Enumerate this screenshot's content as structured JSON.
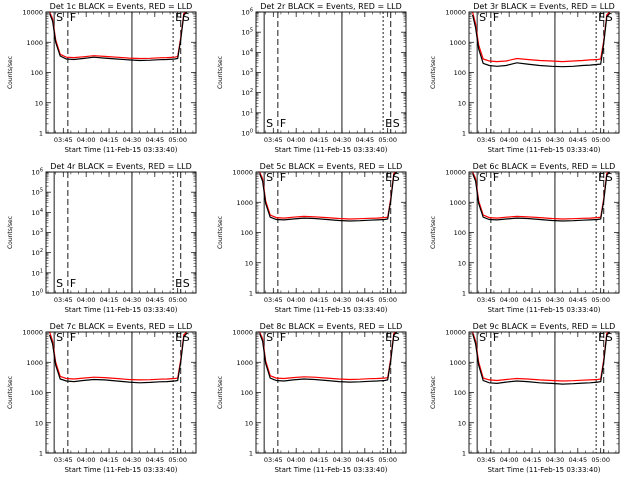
{
  "chart_data": [
    {
      "type": "line",
      "title": "Det 1c BLACK = Events, RED = LLD",
      "xlabel": "Start Time (11-Feb-15 03:33:40)",
      "ylabel": "Counts/sec",
      "xlim": [
        "03:33:40",
        "05:12:00"
      ],
      "x_ticks": [
        "03:45",
        "04:00",
        "04:15",
        "04:30",
        "04:45",
        "05:00"
      ],
      "yscale": "log",
      "ylim": [
        1,
        10000
      ],
      "y_ticks": [
        "1",
        "10",
        "100",
        "1000",
        "10000"
      ],
      "grid": false,
      "x": [
        "03:36",
        "03:38",
        "03:40",
        "03:43",
        "03:47",
        "03:52",
        "03:58",
        "04:05",
        "04:12",
        "04:20",
        "04:28",
        "04:35",
        "04:42",
        "04:48",
        "04:53",
        "04:58",
        "05:00",
        "05:02",
        "05:04",
        "05:06"
      ],
      "series": [
        {
          "name": "Events",
          "color": "#000000",
          "values": [
            9000,
            5000,
            1000,
            350,
            280,
            270,
            290,
            320,
            300,
            280,
            260,
            250,
            255,
            265,
            270,
            280,
            290,
            1200,
            8000,
            10000
          ]
        },
        {
          "name": "LLD",
          "color": "#ff0000",
          "values": [
            10000,
            6000,
            1200,
            400,
            320,
            310,
            330,
            360,
            340,
            320,
            300,
            290,
            295,
            305,
            310,
            320,
            340,
            1400,
            9000,
            10000
          ]
        }
      ],
      "markers": [
        {
          "label": "S",
          "time": "03:39"
        },
        {
          "label": "F",
          "time": "03:48"
        },
        {
          "label": "",
          "time": "04:30"
        },
        {
          "label": "E",
          "time": "04:57"
        },
        {
          "label": "S",
          "time": "05:02"
        }
      ]
    },
    {
      "type": "line",
      "title": "Det 2r BLACK = Events, RED = LLD",
      "xlabel": "Start Time (11-Feb-15 03:33:40)",
      "ylabel": "Counts/sec",
      "xlim": [
        "03:33:40",
        "05:12:00"
      ],
      "x_ticks": [
        "03:45",
        "04:00",
        "04:15",
        "04:30",
        "04:45",
        "05:00"
      ],
      "yscale": "log",
      "ylim": [
        1,
        1000000
      ],
      "y_ticks": [
        "10^0",
        "10^1",
        "10^2",
        "10^3",
        "10^4",
        "10^5",
        "10^6"
      ],
      "grid": false,
      "x": [],
      "series": [],
      "markers": [
        {
          "label": "S",
          "time": "03:39"
        },
        {
          "label": "F",
          "time": "03:48"
        },
        {
          "label": "",
          "time": "04:30"
        },
        {
          "label": "E",
          "time": "04:57"
        },
        {
          "label": "S",
          "time": "05:02"
        }
      ]
    },
    {
      "type": "line",
      "title": "Det 3r BLACK = Events, RED = LLD",
      "xlabel": "Start Time (11-Feb-15 03:33:40)",
      "ylabel": "Counts/sec",
      "xlim": [
        "03:33:40",
        "05:12:00"
      ],
      "x_ticks": [
        "03:45",
        "04:00",
        "04:15",
        "04:30",
        "04:45",
        "05:00"
      ],
      "yscale": "log",
      "ylim": [
        1,
        10000
      ],
      "y_ticks": [
        "1",
        "10",
        "100",
        "1000",
        "10000"
      ],
      "grid": false,
      "x": [
        "03:36",
        "03:38",
        "03:40",
        "03:43",
        "03:47",
        "03:52",
        "03:58",
        "04:05",
        "04:12",
        "04:20",
        "04:28",
        "04:35",
        "04:42",
        "04:48",
        "04:53",
        "04:58",
        "05:00",
        "05:02",
        "05:04",
        "05:06"
      ],
      "series": [
        {
          "name": "Events",
          "color": "#000000",
          "values": [
            8000,
            3000,
            600,
            200,
            170,
            160,
            170,
            210,
            190,
            170,
            160,
            155,
            160,
            170,
            175,
            185,
            190,
            900,
            7000,
            9000
          ]
        },
        {
          "name": "LLD",
          "color": "#ff0000",
          "values": [
            10000,
            4000,
            800,
            280,
            240,
            230,
            240,
            290,
            270,
            250,
            240,
            230,
            240,
            250,
            260,
            270,
            280,
            1100,
            8000,
            10000
          ]
        }
      ],
      "markers": [
        {
          "label": "S",
          "time": "03:39"
        },
        {
          "label": "F",
          "time": "03:48"
        },
        {
          "label": "",
          "time": "04:30"
        },
        {
          "label": "E",
          "time": "04:57"
        },
        {
          "label": "S",
          "time": "05:02"
        }
      ]
    },
    {
      "type": "line",
      "title": "Det 4r BLACK = Events, RED = LLD",
      "xlabel": "Start Time (11-Feb-15 03:33:40)",
      "ylabel": "Counts/sec",
      "xlim": [
        "03:33:40",
        "05:12:00"
      ],
      "x_ticks": [
        "03:45",
        "04:00",
        "04:15",
        "04:30",
        "04:45",
        "05:00"
      ],
      "yscale": "log",
      "ylim": [
        1,
        1000000
      ],
      "y_ticks": [
        "10^0",
        "10^1",
        "10^2",
        "10^3",
        "10^4",
        "10^5",
        "10^6"
      ],
      "grid": false,
      "x": [],
      "series": [],
      "markers": [
        {
          "label": "S",
          "time": "03:39"
        },
        {
          "label": "F",
          "time": "03:48"
        },
        {
          "label": "",
          "time": "04:30"
        },
        {
          "label": "E",
          "time": "04:57"
        },
        {
          "label": "S",
          "time": "05:02"
        }
      ]
    },
    {
      "type": "line",
      "title": "Det 5c BLACK = Events, RED = LLD",
      "xlabel": "Start Time (11-Feb-15 03:33:40)",
      "ylabel": "Counts/sec",
      "xlim": [
        "03:33:40",
        "05:12:00"
      ],
      "x_ticks": [
        "03:45",
        "04:00",
        "04:15",
        "04:30",
        "04:45",
        "05:00"
      ],
      "yscale": "log",
      "ylim": [
        1,
        10000
      ],
      "y_ticks": [
        "1",
        "10",
        "100",
        "1000",
        "10000"
      ],
      "grid": false,
      "x": [
        "03:36",
        "03:38",
        "03:40",
        "03:43",
        "03:47",
        "03:52",
        "03:58",
        "04:05",
        "04:12",
        "04:20",
        "04:28",
        "04:35",
        "04:42",
        "04:48",
        "04:53",
        "04:58",
        "05:00",
        "05:02",
        "05:04",
        "05:06"
      ],
      "series": [
        {
          "name": "Events",
          "color": "#000000",
          "values": [
            9000,
            5000,
            900,
            320,
            270,
            260,
            280,
            300,
            290,
            270,
            250,
            240,
            245,
            255,
            260,
            270,
            280,
            1100,
            8000,
            10000
          ]
        },
        {
          "name": "LLD",
          "color": "#ff0000",
          "values": [
            10000,
            6000,
            1100,
            380,
            310,
            300,
            320,
            340,
            330,
            310,
            290,
            280,
            285,
            295,
            300,
            310,
            320,
            1300,
            9000,
            10000
          ]
        }
      ],
      "markers": [
        {
          "label": "S",
          "time": "03:39"
        },
        {
          "label": "F",
          "time": "03:48"
        },
        {
          "label": "",
          "time": "04:30"
        },
        {
          "label": "E",
          "time": "04:57"
        },
        {
          "label": "S",
          "time": "05:02"
        }
      ]
    },
    {
      "type": "line",
      "title": "Det 6c BLACK = Events, RED = LLD",
      "xlabel": "Start Time (11-Feb-15 03:33:40)",
      "ylabel": "Counts/sec",
      "xlim": [
        "03:33:40",
        "05:12:00"
      ],
      "x_ticks": [
        "03:45",
        "04:00",
        "04:15",
        "04:30",
        "04:45",
        "05:00"
      ],
      "yscale": "log",
      "ylim": [
        1,
        10000
      ],
      "y_ticks": [
        "1",
        "10",
        "100",
        "1000",
        "10000"
      ],
      "grid": false,
      "x": [
        "03:36",
        "03:38",
        "03:40",
        "03:43",
        "03:47",
        "03:52",
        "03:58",
        "04:05",
        "04:12",
        "04:20",
        "04:28",
        "04:35",
        "04:42",
        "04:48",
        "04:53",
        "04:58",
        "05:00",
        "05:02",
        "05:04",
        "05:06"
      ],
      "series": [
        {
          "name": "Events",
          "color": "#000000",
          "values": [
            9000,
            5000,
            900,
            320,
            270,
            260,
            280,
            300,
            290,
            270,
            250,
            240,
            245,
            255,
            260,
            270,
            280,
            1100,
            8000,
            10000
          ]
        },
        {
          "name": "LLD",
          "color": "#ff0000",
          "values": [
            10000,
            6000,
            1100,
            380,
            310,
            300,
            320,
            340,
            330,
            310,
            290,
            280,
            285,
            295,
            300,
            310,
            320,
            1300,
            9000,
            10000
          ]
        }
      ],
      "markers": [
        {
          "label": "S",
          "time": "03:39"
        },
        {
          "label": "F",
          "time": "03:48"
        },
        {
          "label": "",
          "time": "04:30"
        },
        {
          "label": "E",
          "time": "04:57"
        },
        {
          "label": "S",
          "time": "05:02"
        }
      ]
    },
    {
      "type": "line",
      "title": "Det 7c BLACK = Events, RED = LLD",
      "xlabel": "Start Time (11-Feb-15 03:33:40)",
      "ylabel": "Counts/sec",
      "xlim": [
        "03:33:40",
        "05:12:00"
      ],
      "x_ticks": [
        "03:45",
        "04:00",
        "04:15",
        "04:30",
        "04:45",
        "05:00"
      ],
      "yscale": "log",
      "ylim": [
        1,
        10000
      ],
      "y_ticks": [
        "1",
        "10",
        "100",
        "1000",
        "10000"
      ],
      "grid": false,
      "x": [
        "03:36",
        "03:38",
        "03:40",
        "03:43",
        "03:47",
        "03:52",
        "03:58",
        "04:05",
        "04:12",
        "04:20",
        "04:28",
        "04:35",
        "04:42",
        "04:48",
        "04:53",
        "04:58",
        "05:00",
        "05:02",
        "05:04",
        "05:06"
      ],
      "series": [
        {
          "name": "Events",
          "color": "#000000",
          "values": [
            8000,
            4000,
            800,
            280,
            240,
            230,
            250,
            270,
            260,
            240,
            220,
            210,
            215,
            225,
            230,
            240,
            250,
            1000,
            7000,
            9000
          ]
        },
        {
          "name": "LLD",
          "color": "#ff0000",
          "values": [
            10000,
            5000,
            1000,
            340,
            290,
            280,
            300,
            320,
            310,
            290,
            270,
            260,
            265,
            275,
            280,
            290,
            300,
            1200,
            8000,
            10000
          ]
        }
      ],
      "markers": [
        {
          "label": "S",
          "time": "03:39"
        },
        {
          "label": "F",
          "time": "03:48"
        },
        {
          "label": "",
          "time": "04:30"
        },
        {
          "label": "E",
          "time": "04:57"
        },
        {
          "label": "S",
          "time": "05:02"
        }
      ]
    },
    {
      "type": "line",
      "title": "Det 8c BLACK = Events, RED = LLD",
      "xlabel": "Start Time (11-Feb-15 03:33:40)",
      "ylabel": "Counts/sec",
      "xlim": [
        "03:33:40",
        "05:12:00"
      ],
      "x_ticks": [
        "03:45",
        "04:00",
        "04:15",
        "04:30",
        "04:45",
        "05:00"
      ],
      "yscale": "log",
      "ylim": [
        1,
        10000
      ],
      "y_ticks": [
        "1",
        "10",
        "100",
        "1000",
        "10000"
      ],
      "grid": false,
      "x": [
        "03:36",
        "03:38",
        "03:40",
        "03:43",
        "03:47",
        "03:52",
        "03:58",
        "04:05",
        "04:12",
        "04:20",
        "04:28",
        "04:35",
        "04:42",
        "04:48",
        "04:53",
        "04:58",
        "05:00",
        "05:02",
        "05:04",
        "05:06"
      ],
      "series": [
        {
          "name": "Events",
          "color": "#000000",
          "values": [
            9000,
            5000,
            900,
            300,
            250,
            240,
            260,
            280,
            270,
            250,
            230,
            220,
            225,
            235,
            240,
            250,
            260,
            1100,
            8000,
            10000
          ]
        },
        {
          "name": "LLD",
          "color": "#ff0000",
          "values": [
            10000,
            6000,
            1100,
            360,
            300,
            290,
            310,
            330,
            320,
            300,
            280,
            270,
            275,
            285,
            290,
            300,
            310,
            1300,
            9000,
            10000
          ]
        }
      ],
      "markers": [
        {
          "label": "S",
          "time": "03:39"
        },
        {
          "label": "F",
          "time": "03:48"
        },
        {
          "label": "",
          "time": "04:30"
        },
        {
          "label": "E",
          "time": "04:57"
        },
        {
          "label": "S",
          "time": "05:02"
        }
      ]
    },
    {
      "type": "line",
      "title": "Det 9c BLACK = Events, RED = LLD",
      "xlabel": "Start Time (11-Feb-15 03:33:40)",
      "ylabel": "Counts/sec",
      "xlim": [
        "03:33:40",
        "05:12:00"
      ],
      "x_ticks": [
        "03:45",
        "04:00",
        "04:15",
        "04:30",
        "04:45",
        "05:00"
      ],
      "yscale": "log",
      "ylim": [
        1,
        10000
      ],
      "y_ticks": [
        "1",
        "10",
        "100",
        "1000",
        "10000"
      ],
      "grid": false,
      "x": [
        "03:36",
        "03:38",
        "03:40",
        "03:43",
        "03:47",
        "03:52",
        "03:58",
        "04:05",
        "04:12",
        "04:20",
        "04:28",
        "04:35",
        "04:42",
        "04:48",
        "04:53",
        "04:58",
        "05:00",
        "05:02",
        "05:04",
        "05:06"
      ],
      "series": [
        {
          "name": "Events",
          "color": "#000000",
          "values": [
            9000,
            4000,
            800,
            250,
            210,
            200,
            220,
            240,
            230,
            210,
            200,
            190,
            195,
            205,
            210,
            220,
            230,
            1000,
            8000,
            10000
          ]
        },
        {
          "name": "LLD",
          "color": "#ff0000",
          "values": [
            10000,
            5000,
            1000,
            300,
            260,
            250,
            270,
            290,
            280,
            260,
            250,
            240,
            245,
            255,
            260,
            270,
            280,
            1200,
            9000,
            10000
          ]
        }
      ],
      "markers": [
        {
          "label": "S",
          "time": "03:39"
        },
        {
          "label": "F",
          "time": "03:48"
        },
        {
          "label": "",
          "time": "04:30"
        },
        {
          "label": "E",
          "time": "04:57"
        },
        {
          "label": "S",
          "time": "05:02"
        }
      ]
    }
  ]
}
